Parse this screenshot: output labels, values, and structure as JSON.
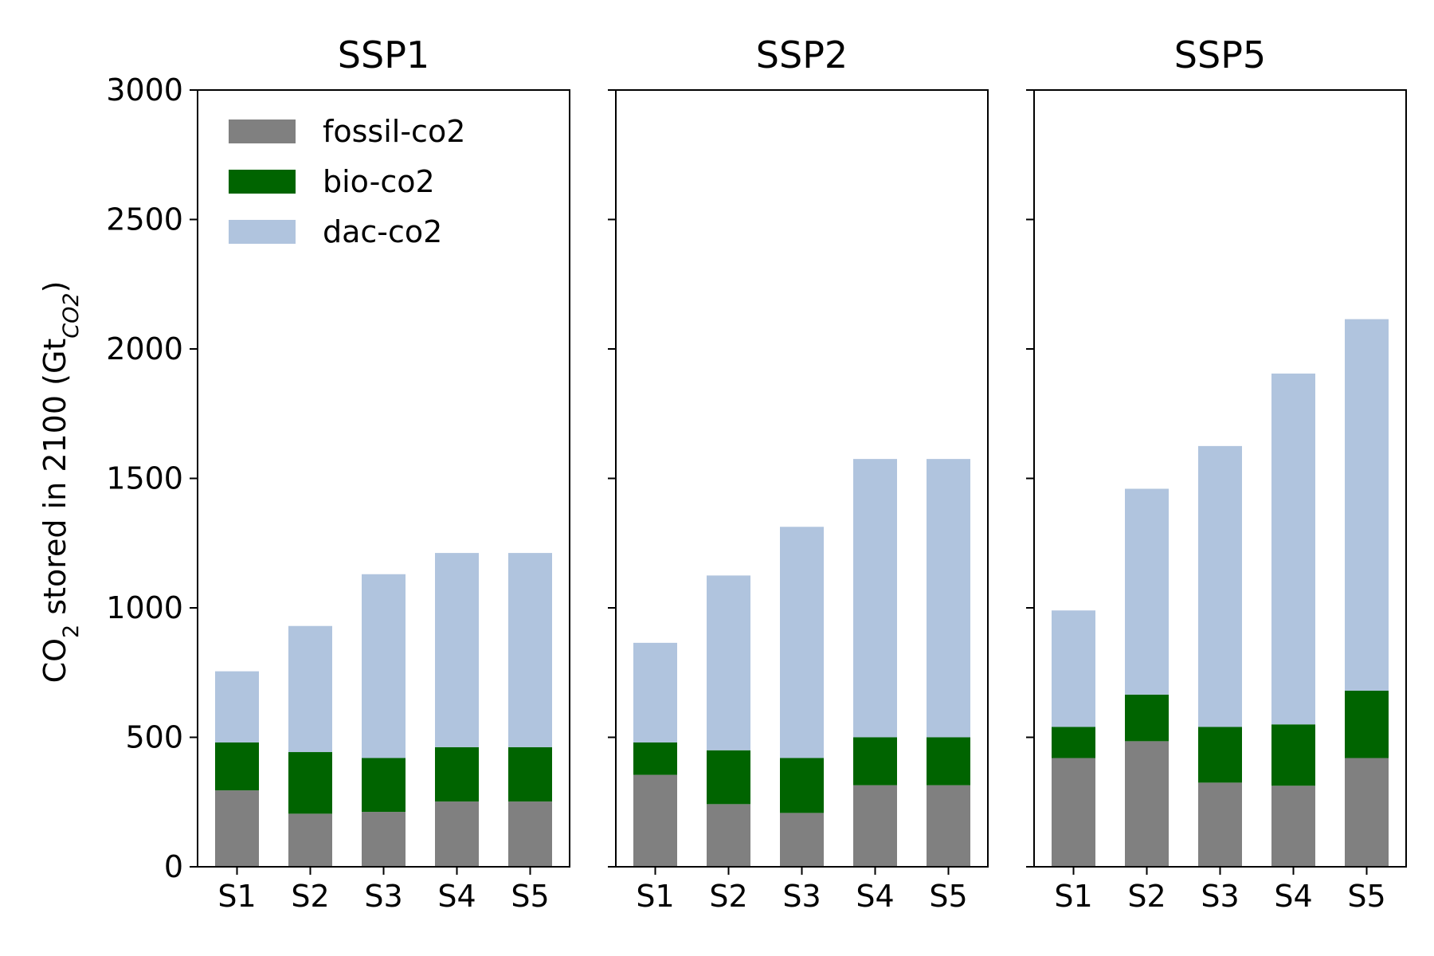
{
  "chart_data": {
    "type": "bar",
    "stacked": true,
    "ylabel": {
      "prefix": "CO",
      "prefix_sub": "2",
      "main": " stored in 2100 (Gt",
      "unit_sub": "CO2",
      "suffix": ")"
    },
    "ylim": [
      0,
      3000
    ],
    "yticks": [
      "0",
      "500",
      "1000",
      "1500",
      "2000",
      "2500",
      "3000"
    ],
    "categories": [
      "S1",
      "S2",
      "S3",
      "S4",
      "S5"
    ],
    "legend": {
      "placement": "top-left"
    },
    "series_styles": [
      {
        "name": "fossil-co2",
        "color": "#808080"
      },
      {
        "name": "bio-co2",
        "color": "#006400"
      },
      {
        "name": "dac-co2",
        "color": "#b0c4de"
      }
    ],
    "panels": [
      {
        "title": "SSP1",
        "series": [
          {
            "name": "fossil-co2",
            "values": [
              295,
              205,
              212,
              252,
              252
            ]
          },
          {
            "name": "bio-co2",
            "values": [
              185,
              238,
              208,
              210,
              210
            ]
          },
          {
            "name": "dac-co2",
            "values": [
              275,
              487,
              710,
              750,
              750
            ]
          }
        ]
      },
      {
        "title": "SSP2",
        "series": [
          {
            "name": "fossil-co2",
            "values": [
              355,
              242,
              208,
              315,
              315
            ]
          },
          {
            "name": "bio-co2",
            "values": [
              125,
              208,
              212,
              185,
              185
            ]
          },
          {
            "name": "dac-co2",
            "values": [
              385,
              675,
              893,
              1075,
              1075
            ]
          }
        ]
      },
      {
        "title": "SSP5",
        "series": [
          {
            "name": "fossil-co2",
            "values": [
              420,
              485,
              325,
              313,
              420
            ]
          },
          {
            "name": "bio-co2",
            "values": [
              120,
              180,
              215,
              237,
              260
            ]
          },
          {
            "name": "dac-co2",
            "values": [
              450,
              795,
              1085,
              1355,
              1435
            ]
          }
        ]
      }
    ]
  }
}
